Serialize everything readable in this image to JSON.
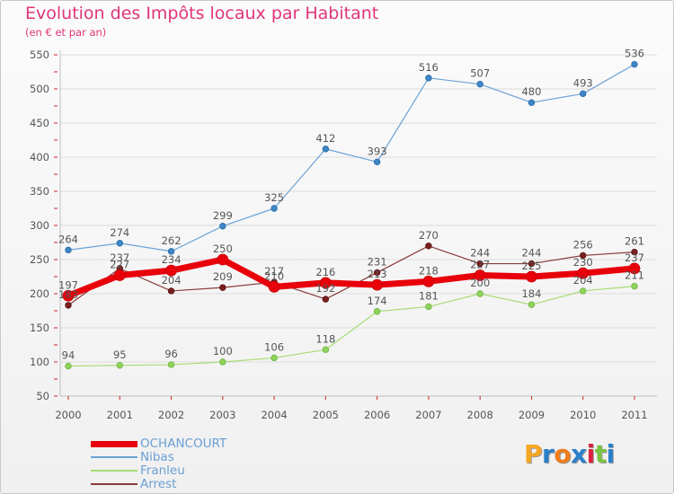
{
  "title": "Evolution des Impôts locaux par Habitant",
  "subtitle": "(en € et par an)",
  "logo": {
    "letters": [
      "P",
      "r",
      "o",
      "x",
      "i",
      "t",
      "i"
    ],
    "colors": [
      "#f5a623",
      "#2a7fc9",
      "#f07c1d",
      "#2a7fc9",
      "#d8233f",
      "#7bc142",
      "#2a7fc9"
    ]
  },
  "chart_data": {
    "type": "line",
    "title": "Evolution des Impôts locaux par Habitant",
    "subtitle": "(en € et par an)",
    "xlabel": "",
    "ylabel": "",
    "x": [
      2000,
      2001,
      2002,
      2003,
      2004,
      2005,
      2006,
      2007,
      2008,
      2009,
      2010,
      2011
    ],
    "ylim": [
      50,
      550
    ],
    "yticks": [
      50,
      100,
      150,
      200,
      250,
      300,
      350,
      400,
      450,
      500,
      550
    ],
    "grid": "horizontal",
    "legend_position": "bottom-left",
    "series": [
      {
        "name": "OCHANCOURT",
        "color": "#e8000b",
        "values": [
          197,
          227,
          234,
          250,
          210,
          216,
          213,
          218,
          227,
          225,
          230,
          237
        ]
      },
      {
        "name": "Nibas",
        "color": "#6aa2d6",
        "values": [
          264,
          274,
          262,
          299,
          325,
          412,
          393,
          516,
          507,
          480,
          493,
          536
        ]
      },
      {
        "name": "Franleu",
        "color": "#a8dc74",
        "values": [
          94,
          95,
          96,
          100,
          106,
          118,
          174,
          181,
          200,
          184,
          204,
          211
        ]
      },
      {
        "name": "Arrest",
        "color": "#8a3a3a",
        "values": [
          183,
          237,
          204,
          209,
          217,
          192,
          231,
          270,
          244,
          244,
          256,
          261
        ]
      }
    ]
  }
}
